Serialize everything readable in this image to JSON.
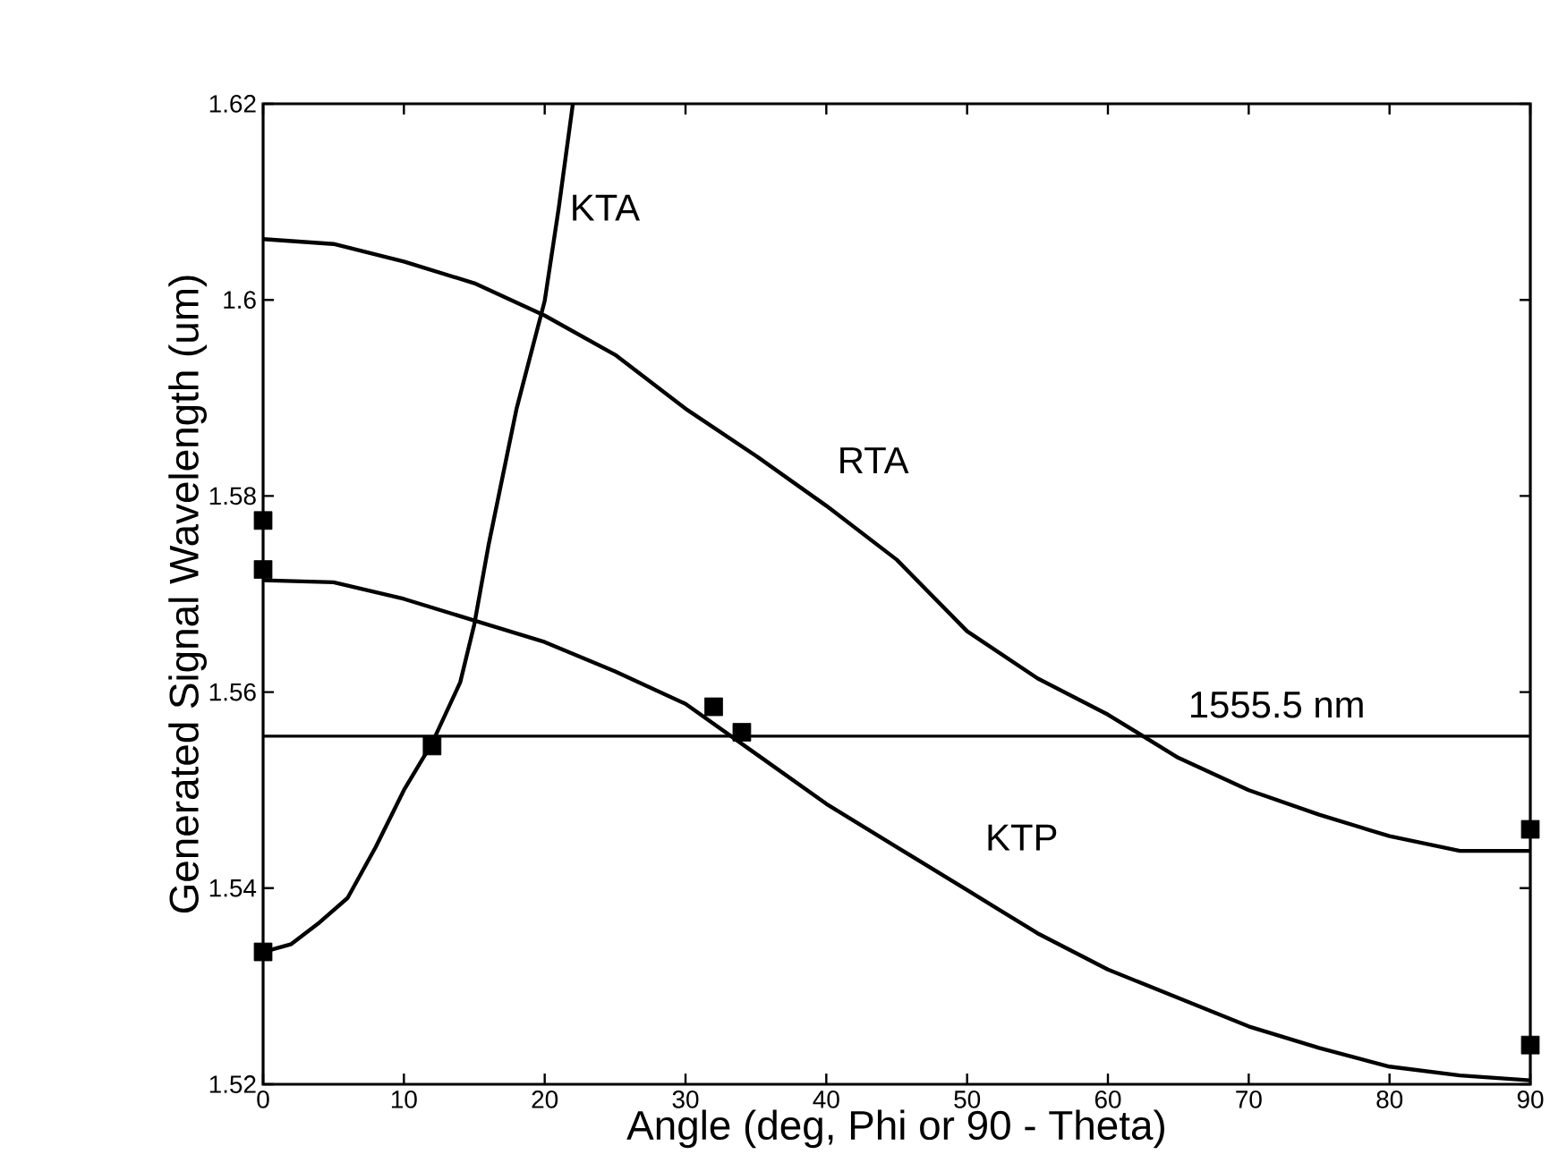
{
  "chart_data": {
    "type": "line",
    "xlabel": "Angle (deg, Phi or 90 - Theta)",
    "ylabel": "Generated Signal Wavelength (um)",
    "xlim": [
      0,
      90
    ],
    "ylim": [
      1.52,
      1.62
    ],
    "xticks": [
      0,
      10,
      20,
      30,
      40,
      50,
      60,
      70,
      80,
      90
    ],
    "yticks": [
      1.52,
      1.54,
      1.56,
      1.58,
      1.6,
      1.62
    ],
    "line_style": "solid",
    "series": [
      {
        "name": "KTA",
        "color": "#000000",
        "marker": "none",
        "x": [
          0,
          2,
          4,
          6,
          8,
          10,
          12,
          14,
          15,
          16,
          18,
          20,
          21,
          22
        ],
        "values": [
          1.5335,
          1.5343,
          1.5365,
          1.539,
          1.5442,
          1.55,
          1.5548,
          1.561,
          1.5669,
          1.5749,
          1.5889,
          1.5999,
          1.6094,
          1.62
        ]
      },
      {
        "name": "RTA",
        "color": "#000000",
        "marker": "none",
        "x": [
          0,
          5,
          10,
          15,
          20,
          25,
          30,
          35,
          40,
          45,
          50,
          55,
          60,
          65,
          70,
          75,
          80,
          85,
          90
        ],
        "values": [
          1.6062,
          1.6057,
          1.6039,
          1.6017,
          1.5984,
          1.5944,
          1.5889,
          1.5841,
          1.579,
          1.5735,
          1.5662,
          1.5614,
          1.5577,
          1.5533,
          1.55,
          1.5475,
          1.5453,
          1.5438,
          1.5438
        ]
      },
      {
        "name": "KTP",
        "color": "#000000",
        "marker": "none",
        "x": [
          0,
          5,
          10,
          15,
          20,
          25,
          30,
          35,
          40,
          45,
          50,
          55,
          60,
          65,
          70,
          75,
          80,
          85,
          90
        ],
        "values": [
          1.5714,
          1.5712,
          1.5695,
          1.5673,
          1.5651,
          1.5621,
          1.5588,
          1.5537,
          1.5486,
          1.5442,
          1.5398,
          1.5354,
          1.5317,
          1.5288,
          1.5259,
          1.5237,
          1.5218,
          1.5209,
          1.5204
        ]
      },
      {
        "type": "scatter",
        "color": "#000000",
        "marker": "square",
        "x": [
          0,
          0,
          0,
          12,
          32,
          34,
          90,
          90
        ],
        "values": [
          1.5775,
          1.5725,
          1.5335,
          1.5545,
          1.5585,
          1.5559,
          1.546,
          1.524
        ]
      }
    ],
    "ref_lines": [
      {
        "axis": "y",
        "value": 1.5555,
        "label": "1555.5 nm",
        "color": "#000000"
      }
    ]
  }
}
